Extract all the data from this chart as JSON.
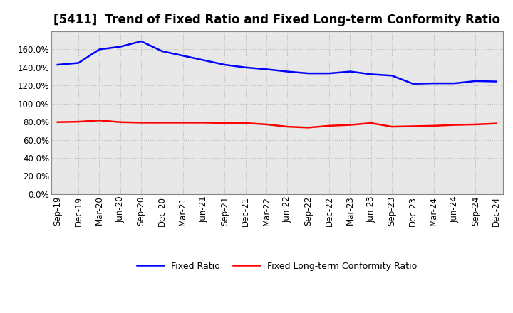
{
  "title": "[5411]  Trend of Fixed Ratio and Fixed Long-term Conformity Ratio",
  "x_labels": [
    "Sep-19",
    "Dec-19",
    "Mar-20",
    "Jun-20",
    "Sep-20",
    "Dec-20",
    "Mar-21",
    "Jun-21",
    "Sep-21",
    "Dec-21",
    "Mar-22",
    "Jun-22",
    "Sep-22",
    "Dec-22",
    "Mar-23",
    "Jun-23",
    "Sep-23",
    "Dec-23",
    "Mar-24",
    "Jun-24",
    "Sep-24",
    "Dec-24"
  ],
  "fixed_ratio": [
    143.0,
    145.0,
    160.0,
    163.0,
    169.0,
    158.0,
    153.0,
    148.0,
    143.0,
    140.0,
    138.0,
    135.5,
    133.5,
    133.5,
    135.5,
    132.5,
    131.0,
    122.0,
    122.5,
    122.5,
    125.0,
    124.5
  ],
  "fixed_lt_ratio": [
    79.5,
    80.0,
    81.5,
    79.5,
    79.0,
    79.0,
    79.0,
    79.0,
    78.5,
    78.5,
    77.0,
    74.5,
    73.5,
    75.5,
    76.5,
    78.5,
    74.5,
    75.0,
    75.5,
    76.5,
    77.0,
    78.0
  ],
  "fixed_ratio_color": "#0000FF",
  "fixed_lt_ratio_color": "#FF0000",
  "plot_bg_color": "#E8E8E8",
  "outer_bg_color": "#FFFFFF",
  "grid_color": "#BBBBBB",
  "ylim": [
    0,
    180
  ],
  "yticks": [
    0,
    20,
    40,
    60,
    80,
    100,
    120,
    140,
    160
  ],
  "legend_fixed": "Fixed Ratio",
  "legend_lt": "Fixed Long-term Conformity Ratio",
  "title_fontsize": 12,
  "axis_fontsize": 8.5,
  "legend_fontsize": 9
}
